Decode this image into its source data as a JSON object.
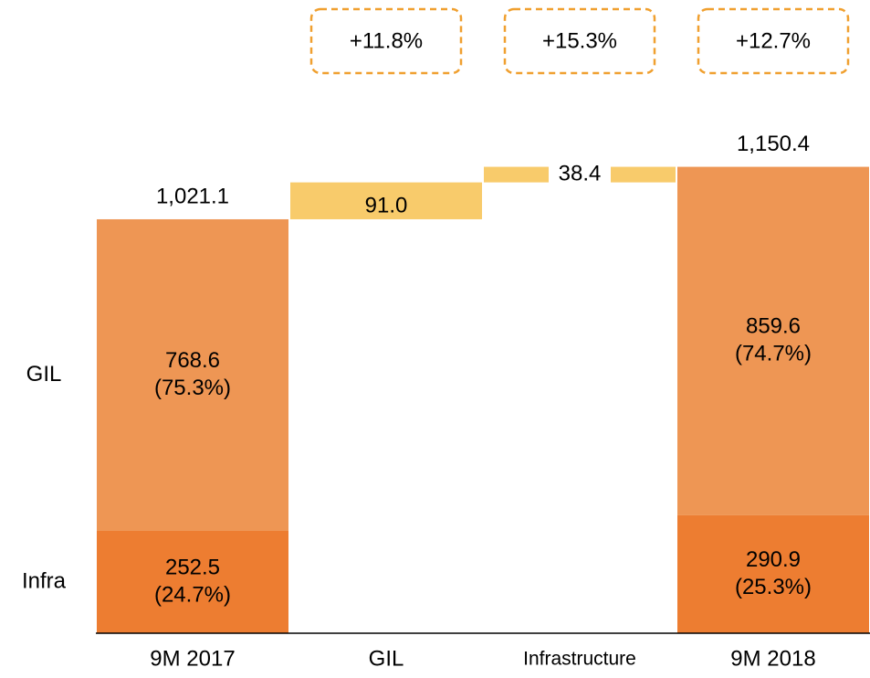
{
  "chart_data": {
    "type": "waterfall",
    "categories": [
      "9M 2017",
      "GIL",
      "Infrastructure",
      "9M 2018"
    ],
    "series": [
      {
        "name": "Infra",
        "color": "#ed7d31",
        "values": [
          252.5,
          null,
          null,
          290.9
        ],
        "shares": [
          24.7,
          null,
          null,
          25.3
        ],
        "share_labels": [
          "(24.7%)",
          null,
          null,
          "(25.3%)"
        ]
      },
      {
        "name": "GIL",
        "color": "#ee9654",
        "values": [
          768.6,
          null,
          null,
          859.6
        ],
        "shares": [
          75.3,
          null,
          null,
          74.7
        ],
        "share_labels": [
          "(75.3%)",
          null,
          null,
          "(74.7%)"
        ]
      }
    ],
    "increments": {
      "color": "#f8cb6b",
      "values": [
        null,
        91.0,
        38.4,
        null
      ],
      "value_labels": [
        null,
        "91.0",
        "38.4",
        null
      ]
    },
    "totals": [
      1021.1,
      null,
      null,
      1150.4
    ],
    "total_labels": [
      "1,021.1",
      null,
      null,
      "1,150.4"
    ],
    "growth": [
      null,
      11.8,
      15.3,
      12.7
    ],
    "growth_labels": [
      null,
      "+11.8%",
      "+15.3%",
      "+12.7%"
    ],
    "ylim": [
      0,
      1562
    ]
  }
}
